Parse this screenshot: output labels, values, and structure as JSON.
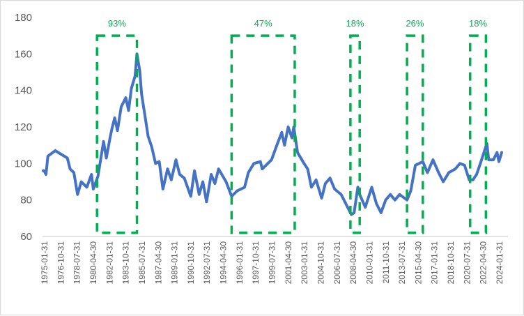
{
  "chart_data": {
    "type": "line",
    "title": "",
    "xlabel": "",
    "ylabel": "",
    "ylim": [
      60,
      180
    ],
    "xlim": [
      1975.0,
      2024.4
    ],
    "yticks": [
      "60",
      "80",
      "100",
      "120",
      "140",
      "160",
      "180"
    ],
    "grid": false,
    "legend": "none",
    "xtick_labels": [
      "1975-01-31",
      "1976-10-31",
      "1978-07-31",
      "1980-04-30",
      "1982-01-31",
      "1983-10-31",
      "1985-07-31",
      "1987-04-30",
      "1989-01-31",
      "1990-10-31",
      "1992-07-31",
      "1994-04-30",
      "1996-01-31",
      "1997-10-31",
      "1999-07-31",
      "2001-04-30",
      "2003-01-31",
      "2004-10-31",
      "2006-07-31",
      "2008-04-30",
      "2010-01-31",
      "2011-10-31",
      "2013-07-31",
      "2015-04-30",
      "2017-01-31",
      "2018-10-31",
      "2020-07-31",
      "2022-04-30",
      "2024-01-31"
    ],
    "series": [
      {
        "name": "series",
        "color": "#4472C4",
        "points": [
          [
            1975.0,
            96
          ],
          [
            1975.1,
            96
          ],
          [
            1975.3,
            94
          ],
          [
            1975.5,
            104
          ],
          [
            1976.3,
            107
          ],
          [
            1977.6,
            103
          ],
          [
            1977.9,
            97
          ],
          [
            1978.3,
            95
          ],
          [
            1978.7,
            83
          ],
          [
            1979.1,
            90
          ],
          [
            1979.7,
            87
          ],
          [
            1980.2,
            94
          ],
          [
            1980.4,
            86
          ],
          [
            1980.9,
            93
          ],
          [
            1981.5,
            112
          ],
          [
            1981.8,
            103
          ],
          [
            1982.2,
            114
          ],
          [
            1982.4,
            119
          ],
          [
            1982.7,
            125
          ],
          [
            1983.0,
            118
          ],
          [
            1983.4,
            131
          ],
          [
            1983.9,
            136
          ],
          [
            1984.2,
            129
          ],
          [
            1984.5,
            141
          ],
          [
            1984.9,
            148
          ],
          [
            1985.1,
            160
          ],
          [
            1985.4,
            151
          ],
          [
            1985.6,
            138
          ],
          [
            1986.0,
            125
          ],
          [
            1986.3,
            115
          ],
          [
            1986.7,
            109
          ],
          [
            1987.1,
            100
          ],
          [
            1987.5,
            101
          ],
          [
            1987.9,
            86
          ],
          [
            1988.4,
            97
          ],
          [
            1988.8,
            91
          ],
          [
            1989.3,
            102
          ],
          [
            1989.7,
            94
          ],
          [
            1990.2,
            92
          ],
          [
            1990.9,
            82
          ],
          [
            1991.3,
            96
          ],
          [
            1991.8,
            83
          ],
          [
            1992.2,
            90
          ],
          [
            1992.6,
            79
          ],
          [
            1993.1,
            94
          ],
          [
            1993.5,
            89
          ],
          [
            1993.9,
            97
          ],
          [
            1994.7,
            90
          ],
          [
            1995.3,
            82
          ],
          [
            1995.9,
            85
          ],
          [
            1996.7,
            87
          ],
          [
            1997.1,
            95
          ],
          [
            1997.7,
            100
          ],
          [
            1998.4,
            101
          ],
          [
            1998.6,
            97
          ],
          [
            1999.6,
            102
          ],
          [
            2000.1,
            109
          ],
          [
            2000.7,
            117
          ],
          [
            2001.0,
            110
          ],
          [
            2001.4,
            120
          ],
          [
            2001.8,
            114
          ],
          [
            2002.0,
            120
          ],
          [
            2002.4,
            106
          ],
          [
            2003.1,
            100
          ],
          [
            2003.5,
            97
          ],
          [
            2003.9,
            87
          ],
          [
            2004.4,
            91
          ],
          [
            2005.0,
            81
          ],
          [
            2005.4,
            89
          ],
          [
            2005.9,
            92
          ],
          [
            2006.4,
            86
          ],
          [
            2007.1,
            83
          ],
          [
            2008.2,
            72
          ],
          [
            2008.5,
            73
          ],
          [
            2008.9,
            87
          ],
          [
            2009.1,
            83
          ],
          [
            2009.7,
            76
          ],
          [
            2010.4,
            87
          ],
          [
            2010.9,
            78
          ],
          [
            2011.4,
            73
          ],
          [
            2011.9,
            80
          ],
          [
            2012.4,
            83
          ],
          [
            2012.9,
            80
          ],
          [
            2013.4,
            83
          ],
          [
            2014.2,
            80
          ],
          [
            2014.6,
            85
          ],
          [
            2015.1,
            99
          ],
          [
            2015.9,
            101
          ],
          [
            2016.4,
            95
          ],
          [
            2017.0,
            102
          ],
          [
            2017.6,
            95
          ],
          [
            2018.1,
            90
          ],
          [
            2018.7,
            95
          ],
          [
            2019.4,
            97
          ],
          [
            2019.9,
            100
          ],
          [
            2020.4,
            99
          ],
          [
            2020.9,
            91
          ],
          [
            2021.3,
            91
          ],
          [
            2021.7,
            94
          ],
          [
            2022.1,
            100
          ],
          [
            2022.8,
            111
          ],
          [
            2023.0,
            102
          ],
          [
            2023.5,
            102
          ],
          [
            2023.9,
            106
          ],
          [
            2024.1,
            101
          ],
          [
            2024.4,
            106
          ]
        ]
      }
    ],
    "annotations": [
      {
        "label": "93%",
        "x_start": 1980.8,
        "x_end": 1985.1,
        "y_start": 62,
        "y_end": 170
      },
      {
        "label": "47%",
        "x_start": 1995.3,
        "x_end": 2002.1,
        "y_start": 62,
        "y_end": 170
      },
      {
        "label": "18%",
        "x_start": 2008.1,
        "x_end": 2009.1,
        "y_start": 62,
        "y_end": 170
      },
      {
        "label": "26%",
        "x_start": 2014.2,
        "x_end": 2015.9,
        "y_start": 62,
        "y_end": 170
      },
      {
        "label": "18%",
        "x_start": 2021.0,
        "x_end": 2022.7,
        "y_start": 62,
        "y_end": 170
      }
    ],
    "annotation_color": "#00B050",
    "axis_color": "#D9D9D9"
  }
}
